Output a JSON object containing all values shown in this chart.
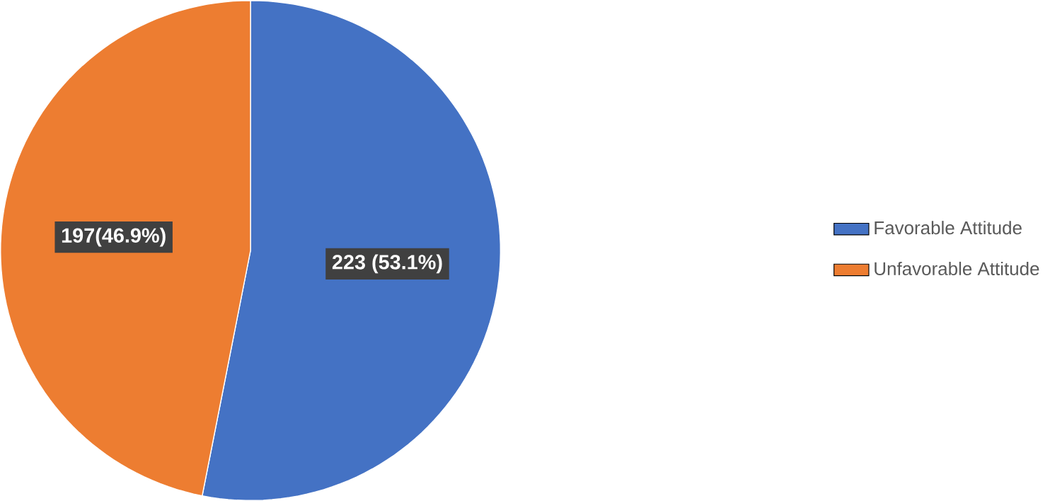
{
  "chart_data": {
    "type": "pie",
    "categories": [
      "Favorable Attitude",
      "Unfavorable Attitude"
    ],
    "values": [
      223,
      197
    ],
    "colors": [
      "#4472c4",
      "#ed7d31"
    ],
    "value_labels": [
      "223 (53.1%)",
      "197(46.9%)"
    ],
    "legend": "right"
  }
}
